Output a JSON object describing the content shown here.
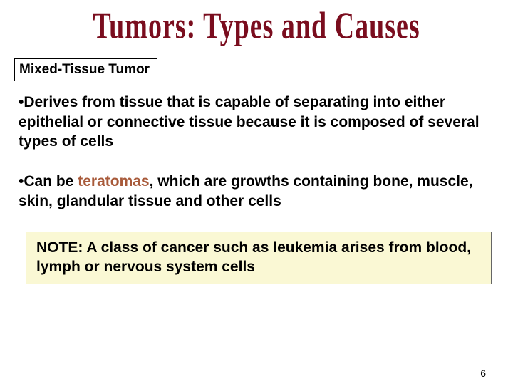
{
  "title": {
    "text": "Tumors: Types and Causes",
    "color": "#7a0d1e",
    "fontsize": 38,
    "font_family": "Times New Roman, serif",
    "font_weight": "bold"
  },
  "subtitle": {
    "text": "Mixed-Tissue Tumor",
    "fontsize": 19,
    "border_color": "#000000"
  },
  "bullets": [
    {
      "prefix": "•",
      "text": "Derives from tissue that is capable of separating into either epithelial or connective tissue because it is composed of several types of cells"
    },
    {
      "prefix": "•",
      "pre": "Can be ",
      "term": "teratomas",
      "term_color": "#a85a3a",
      "post": ", which are growths containing bone, muscle, skin, glandular tissue and other cells"
    }
  ],
  "note": {
    "text": "NOTE: A class of cancer such as leukemia arises from blood, lymph or nervous system cells",
    "background_color": "#faf8d4",
    "border_color": "#666666",
    "fontsize": 21
  },
  "page_number": "6",
  "body_fontsize": 21,
  "background_color": "#ffffff"
}
